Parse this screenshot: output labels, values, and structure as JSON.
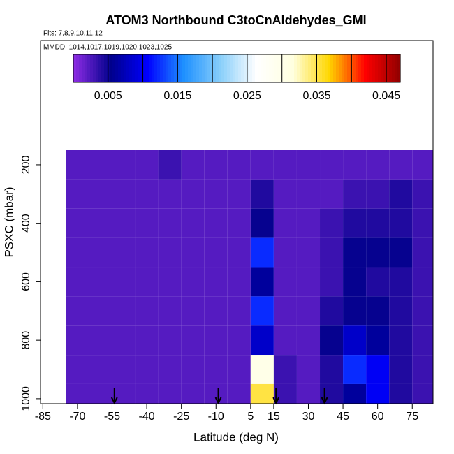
{
  "chart_data": {
    "type": "heatmap",
    "title": "ATOM3 Northbound C3toCnAldehydes_GMI",
    "subtitle": "Flts: 7,8,9,10,11,12",
    "annotation": "MMDD: 1014,1017,1019,1020,1023,1025",
    "x_label": "Latitude (deg N)",
    "y_label": "PSXC (mbar)",
    "x": [
      -70,
      -60,
      -50,
      -40,
      -30,
      -20,
      -10,
      0,
      10,
      20,
      30,
      40,
      50,
      60,
      70,
      80
    ],
    "y": [
      200,
      300,
      400,
      500,
      600,
      700,
      800,
      900,
      1000
    ],
    "z": [
      [
        0.002,
        0.002,
        0.002,
        0.002,
        0.003,
        0.002,
        0.002,
        0.002,
        0.002,
        0.002,
        0.002,
        0.002,
        0.002,
        0.002,
        0.002,
        0.002
      ],
      [
        0.002,
        0.002,
        0.002,
        0.002,
        0.002,
        0.002,
        0.002,
        0.002,
        0.004,
        0.002,
        0.002,
        0.002,
        0.003,
        0.003,
        0.004,
        0.003
      ],
      [
        0.002,
        0.002,
        0.002,
        0.002,
        0.002,
        0.002,
        0.002,
        0.002,
        0.005,
        0.002,
        0.002,
        0.003,
        0.004,
        0.004,
        0.004,
        0.003
      ],
      [
        0.002,
        0.002,
        0.002,
        0.002,
        0.002,
        0.002,
        0.002,
        0.002,
        0.012,
        0.002,
        0.002,
        0.003,
        0.005,
        0.005,
        0.005,
        0.003
      ],
      [
        0.002,
        0.002,
        0.002,
        0.002,
        0.002,
        0.002,
        0.002,
        0.002,
        0.006,
        0.002,
        0.002,
        0.003,
        0.005,
        0.004,
        0.004,
        0.003
      ],
      [
        0.002,
        0.002,
        0.002,
        0.002,
        0.002,
        0.002,
        0.002,
        0.002,
        0.012,
        0.002,
        0.002,
        0.004,
        0.005,
        0.005,
        0.004,
        0.003
      ],
      [
        0.002,
        0.002,
        0.002,
        0.002,
        0.002,
        0.002,
        0.002,
        0.002,
        0.008,
        0.002,
        0.002,
        0.005,
        0.008,
        0.006,
        0.004,
        0.003
      ],
      [
        0.002,
        0.002,
        0.002,
        0.002,
        0.002,
        0.002,
        0.002,
        0.002,
        0.03,
        0.003,
        0.002,
        0.004,
        0.012,
        0.01,
        0.004,
        0.003
      ],
      [
        0.002,
        0.002,
        0.002,
        0.002,
        0.002,
        0.002,
        0.002,
        0.002,
        0.035,
        0.003,
        0.002,
        0.004,
        0.006,
        0.01,
        0.004,
        0.003
      ]
    ],
    "xlim": [
      -86,
      84
    ],
    "ylim": [
      1017,
      -225
    ],
    "xticks": [
      -85,
      -70,
      -55,
      -40,
      -25,
      -10,
      5,
      15,
      30,
      45,
      60,
      75
    ],
    "yticks": [
      200,
      400,
      600,
      800,
      1000
    ],
    "arrows": [
      -54,
      -9,
      16,
      37
    ],
    "colorbar_lim": [
      0,
      0.047
    ],
    "colorbar_ticks": [
      0.005,
      0.015,
      0.025,
      0.035,
      0.045
    ],
    "colorbar_breaks": [
      0.005,
      0.01,
      0.015,
      0.02,
      0.025,
      0.03,
      0.035,
      0.04,
      0.045
    ],
    "colorscale": [
      "#8a2be2",
      "#00008b",
      "#0000ff",
      "#1e90ff",
      "#87cefa",
      "#ffffff",
      "#ffffe0",
      "#ffd700",
      "#ff0000",
      "#8b0000"
    ]
  }
}
